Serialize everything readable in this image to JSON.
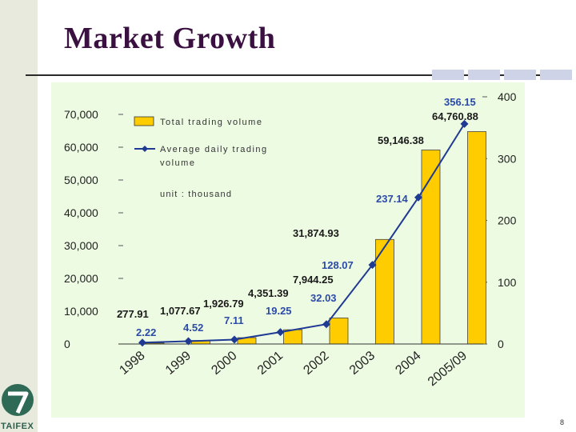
{
  "slide": {
    "title": "Market Growth",
    "page_number": "8",
    "logo_text": "TAIFEX"
  },
  "chart_data": {
    "type": "bar+line",
    "categories": [
      "1998",
      "1999",
      "2000",
      "2001",
      "2002",
      "2003",
      "2004",
      "2005/09"
    ],
    "series": [
      {
        "name": "Total trading volume",
        "kind": "bar",
        "axis": "left",
        "values": [
          277.91,
          1077.67,
          1926.79,
          4351.39,
          7944.25,
          31874.93,
          59146.38,
          64760.88
        ],
        "labels": [
          "277.91",
          "1,077.67",
          "1,926.79",
          "4,351.39",
          "7,944.25",
          "31,874.93",
          "59,146.38",
          "64,760.88"
        ],
        "color": "#ffcc00"
      },
      {
        "name": "Average daily trading volume",
        "kind": "line",
        "axis": "right",
        "values": [
          2.22,
          4.52,
          7.11,
          19.25,
          32.03,
          128.07,
          237.14,
          356.15
        ],
        "labels": [
          "2.22",
          "4.52",
          "7.11",
          "19.25",
          "32.03",
          "128.07",
          "237.14",
          "356.15"
        ],
        "color": "#1f3a93"
      }
    ],
    "left_axis": {
      "min": 0,
      "max": 70000,
      "ticks": [
        "0",
        "10,000",
        "20,000",
        "30,000",
        "40,000",
        "50,000",
        "60,000",
        "70,000"
      ]
    },
    "right_axis": {
      "min": 0,
      "max": 400,
      "ticks": [
        "0",
        "100",
        "200",
        "300",
        "400"
      ]
    },
    "legend": {
      "bar_label": "Total trading volume",
      "line_label_line1": "Average daily trading",
      "line_label_line2": "volume",
      "unit_note": "unit : thousand",
      "placement": "top-left"
    },
    "plot_background": "#eefbe3",
    "grid": false
  }
}
